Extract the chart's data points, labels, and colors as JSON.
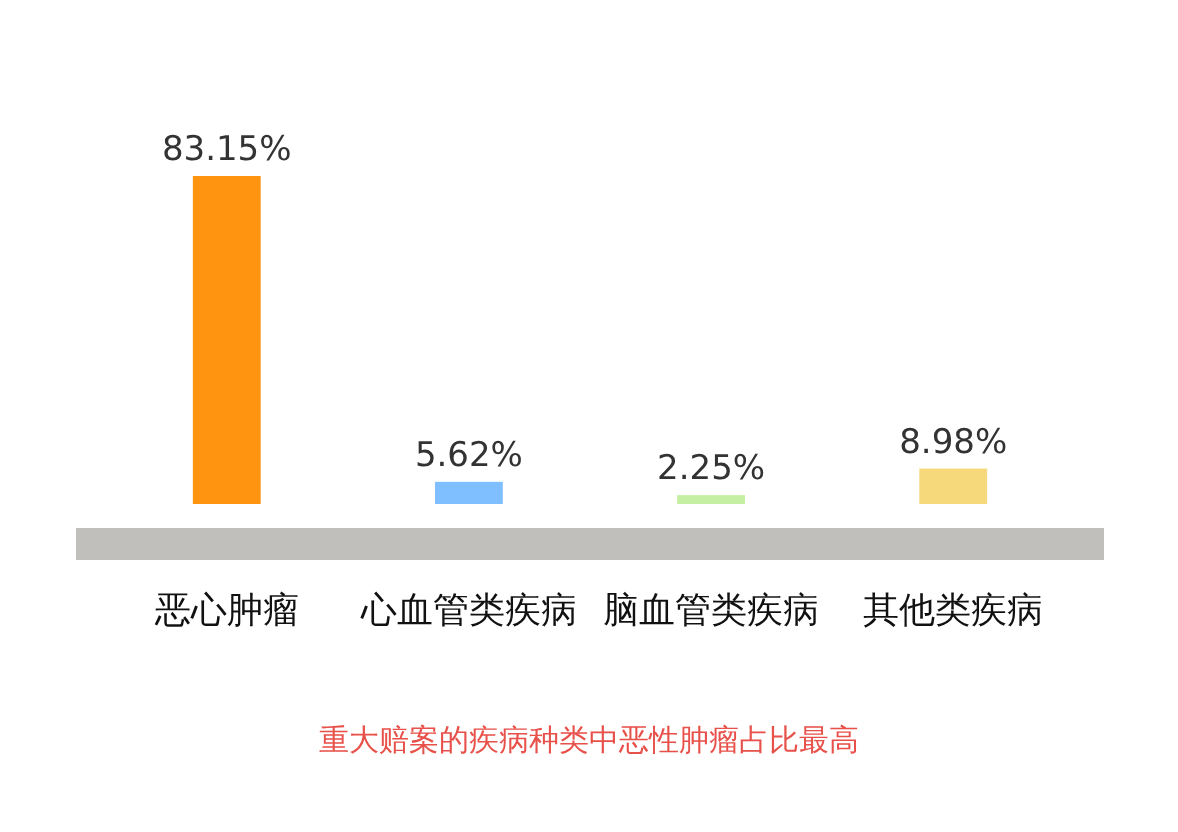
{
  "chart_data": {
    "type": "bar",
    "categories": [
      "恶心肿瘤",
      "心血管类疾病",
      "脑血管类疾病",
      "其他类疾病"
    ],
    "values": [
      83.15,
      5.62,
      2.25,
      8.98
    ],
    "colors": [
      "#ff9410",
      "#80bfff",
      "#c5f0a4",
      "#f5d97a"
    ],
    "value_labels": [
      "83.15%",
      "5.62%",
      "2.25%",
      "8.98%"
    ],
    "data_labels": true,
    "annotations": [
      "重大赔案的疾病种类中恶性肿瘤占比最高"
    ]
  }
}
